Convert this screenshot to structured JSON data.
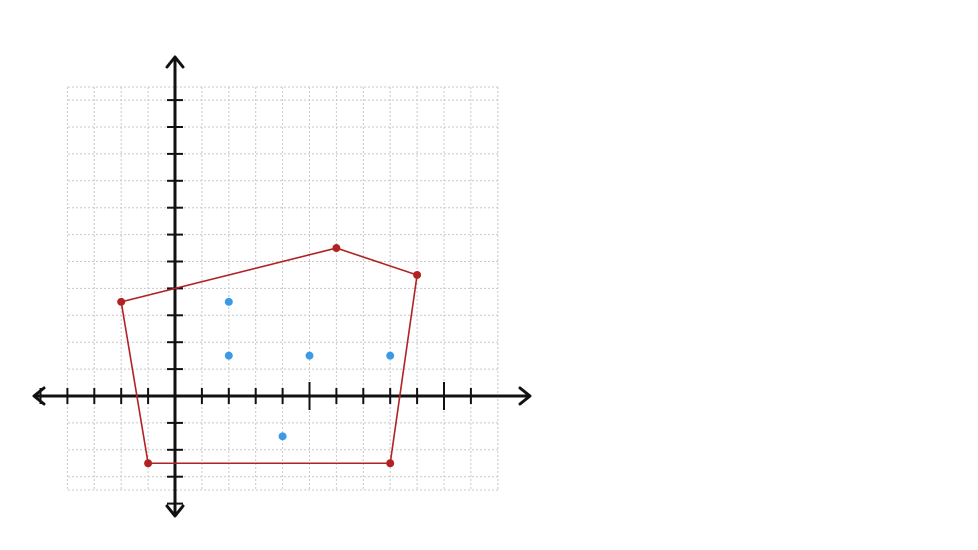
{
  "chart_data": {
    "type": "scatter",
    "title": "",
    "xlabel": "",
    "ylabel": "",
    "xlim": [
      -4,
      12
    ],
    "ylim": [
      -4,
      11
    ],
    "grid": true,
    "axes_arrows": true,
    "x_ticks": [
      -5,
      -4,
      -3,
      -2,
      -1,
      1,
      2,
      3,
      4,
      5,
      6,
      7,
      8,
      9,
      10,
      11
    ],
    "x_long_ticks": [
      5,
      10
    ],
    "y_ticks": [
      -4,
      -3,
      -2,
      -1,
      1,
      2,
      3,
      4,
      5,
      6,
      7,
      8,
      9,
      10,
      11
    ],
    "polygon": {
      "color": "#b22222",
      "vertices": [
        [
          -2,
          3.5
        ],
        [
          6,
          5.5
        ],
        [
          9,
          4.5
        ],
        [
          8,
          -2.5
        ],
        [
          -1,
          -2.5
        ]
      ]
    },
    "points": {
      "color": "#3b9ae8",
      "values": [
        [
          2,
          3.5
        ],
        [
          2,
          1.5
        ],
        [
          5,
          1.5
        ],
        [
          8,
          1.5
        ],
        [
          4,
          -1.5
        ]
      ]
    }
  }
}
